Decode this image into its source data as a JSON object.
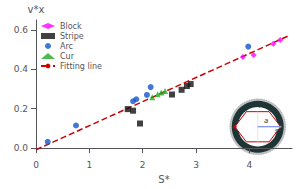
{
  "chart_data": {
    "type": "scatter",
    "xlabel": "S*",
    "ylabel": "v*x",
    "series": [
      {
        "name": "Block",
        "type": "scatter",
        "color": "#ff00ff",
        "marker": "diamond",
        "x": [
          3.88,
          4.08,
          4.45,
          4.58
        ],
        "values": [
          0.462,
          0.472,
          0.53,
          0.548
        ]
      },
      {
        "name": "Stripe",
        "type": "scatter",
        "color": "#111111",
        "marker": "square",
        "x": [
          1.72,
          1.82,
          1.95,
          2.55,
          2.73,
          2.83,
          2.9
        ],
        "values": [
          0.198,
          0.19,
          0.125,
          0.272,
          0.296,
          0.315,
          0.325
        ]
      },
      {
        "name": "Arc",
        "type": "scatter",
        "color": "#1155cc",
        "marker": "circle",
        "x": [
          0.22,
          0.75,
          1.82,
          1.88,
          2.08,
          2.15,
          3.98
        ],
        "values": [
          0.032,
          0.115,
          0.238,
          0.248,
          0.27,
          0.31,
          0.515
        ]
      },
      {
        "name": "Cur",
        "type": "scatter",
        "color": "#22aa22",
        "marker": "triangle",
        "x": [
          2.18,
          2.28,
          2.35,
          2.42
        ],
        "values": [
          0.258,
          0.273,
          0.282,
          0.29
        ]
      },
      {
        "name": "Fitting line",
        "type": "line",
        "color": "#cc0000",
        "line_style": "dashed",
        "x": [
          0,
          4.75
        ],
        "values": [
          -0.008,
          0.5715
        ]
      }
    ],
    "xlim": [
      0,
      4.8
    ],
    "ylim": [
      -0.02,
      0.65
    ],
    "xticks": [
      0,
      1,
      2,
      3,
      4
    ],
    "yticks": [
      {
        "value": 0,
        "label": "0.0"
      },
      0.2,
      0.4,
      0.6
    ],
    "grid": false,
    "legend": "upper left",
    "annotations": [
      "a",
      "s",
      "r"
    ]
  }
}
